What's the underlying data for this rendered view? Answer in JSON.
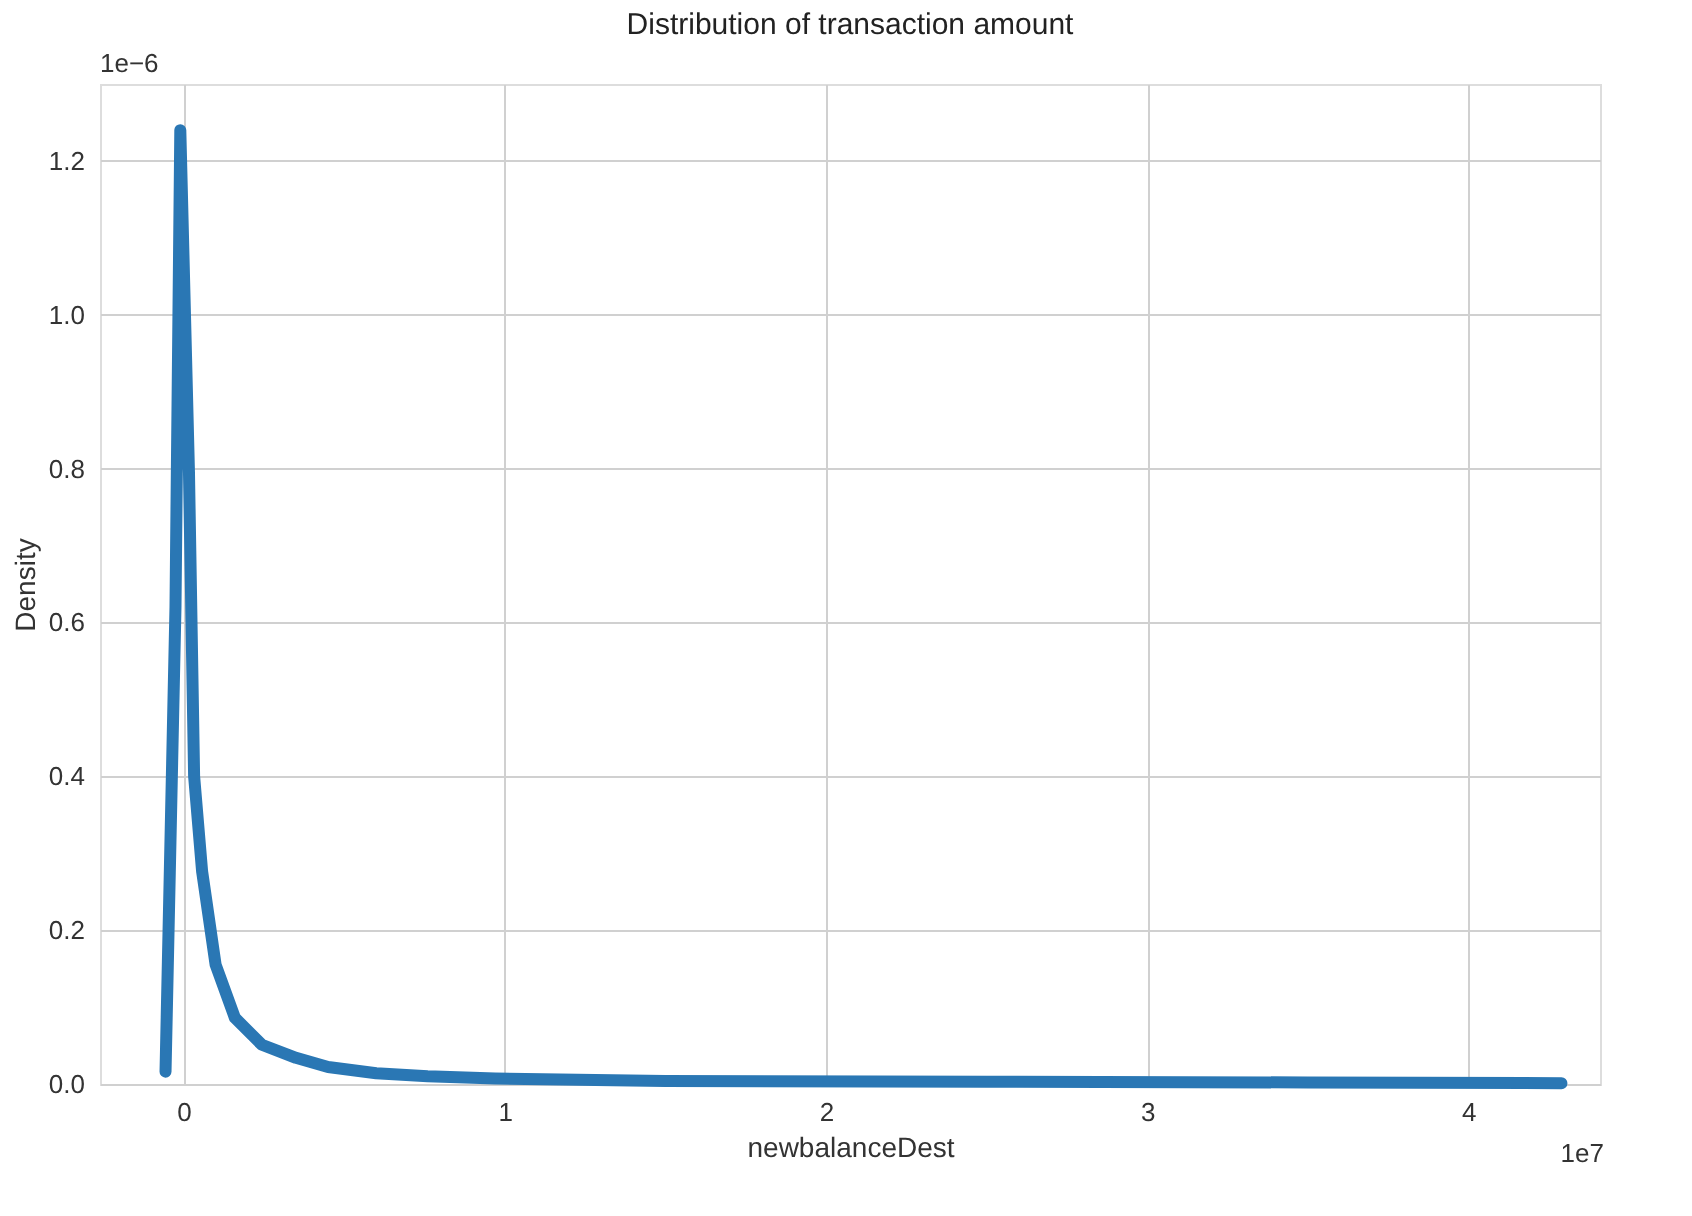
{
  "chart_data": {
    "type": "line",
    "title": "Distribution of transaction amount",
    "xlabel": "newbalanceDest",
    "ylabel": "Density",
    "x": [
      -0.056,
      -0.025,
      -0.01,
      0.017,
      0.033,
      0.058,
      0.1,
      0.16,
      0.244,
      0.35,
      0.45,
      0.6,
      0.76,
      0.97,
      1.5,
      2.5,
      3.5,
      4.29
    ],
    "series": [
      {
        "color": "#2a77b4",
        "values": [
          0.016,
          0.62,
          1.24,
          0.795,
          0.4,
          0.276,
          0.155,
          0.086,
          0.051,
          0.034,
          0.022,
          0.014,
          0.01,
          0.007,
          0.004,
          0.003,
          0.002,
          0.001
        ]
      }
    ],
    "xlim": [
      -0.26,
      4.41
    ],
    "ylim": [
      0,
      1.3
    ],
    "xticks": [
      0,
      1,
      2,
      3,
      4
    ],
    "yticks": [
      {
        "value": 0,
        "label": "0.0"
      },
      {
        "value": 0.2,
        "label": "0.2"
      },
      {
        "value": 0.4,
        "label": "0.4"
      },
      {
        "value": 0.6,
        "label": "0.6"
      },
      {
        "value": 0.8,
        "label": "0.8"
      },
      {
        "value": 1.0,
        "label": "1.0"
      },
      {
        "value": 1.2,
        "label": "1.2"
      }
    ],
    "annotations": [
      "1e−6",
      "1e7"
    ],
    "grid": true,
    "marker": "none",
    "line_style": "solid"
  }
}
